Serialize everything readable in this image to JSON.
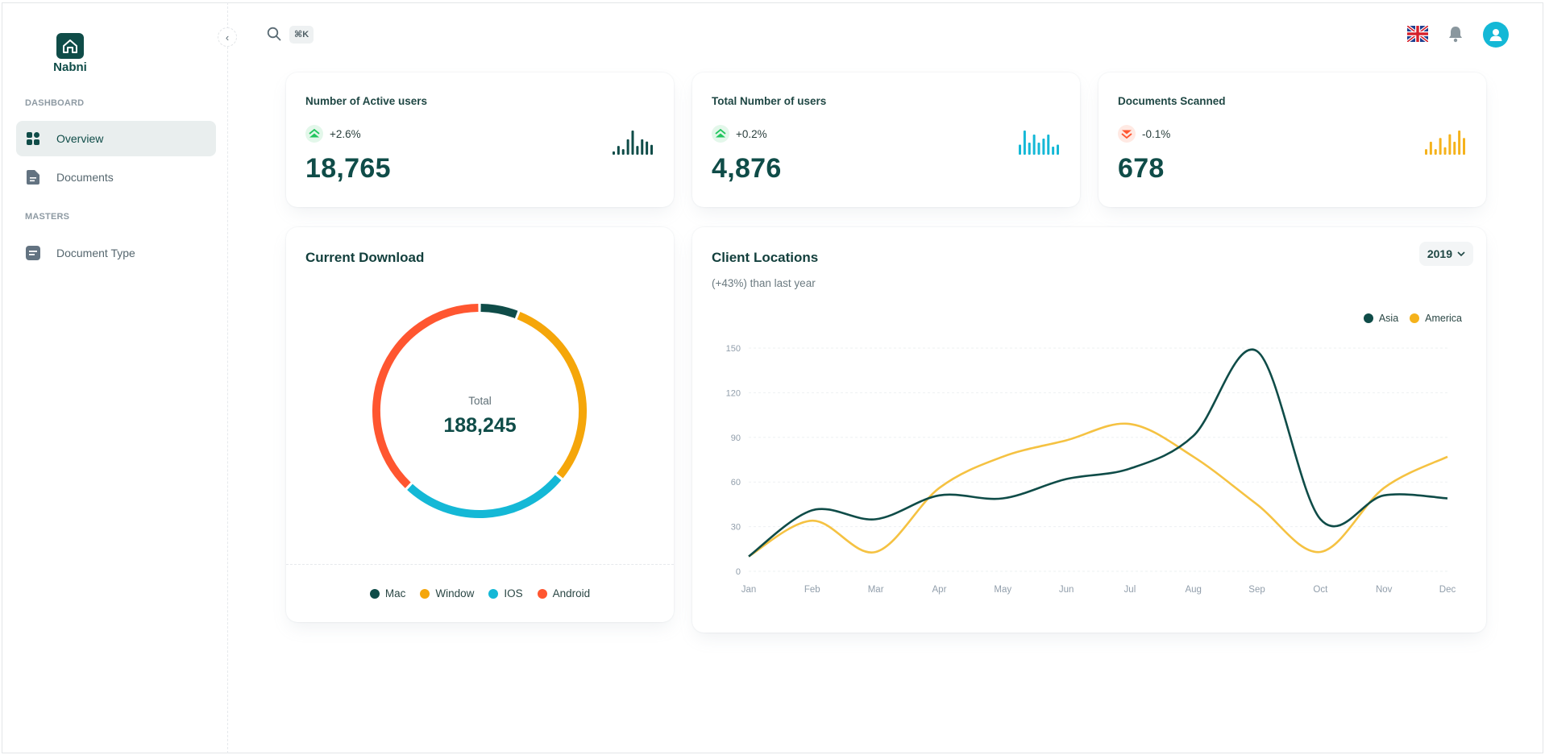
{
  "app": {
    "logo_text": "Nabni"
  },
  "sidebar": {
    "sections": [
      {
        "label": "DASHBOARD"
      },
      {
        "label": "MASTERS"
      }
    ],
    "items": [
      {
        "label": "Overview",
        "icon": "grid-icon",
        "active": true
      },
      {
        "label": "Documents",
        "icon": "document-icon",
        "active": false
      },
      {
        "label": "Document Type",
        "icon": "document-type-icon",
        "active": false
      }
    ]
  },
  "topbar": {
    "search_shortcut": "⌘K",
    "language_icon": "uk-flag-icon",
    "notification_icon": "bell-icon",
    "avatar_icon": "user-icon"
  },
  "stats": [
    {
      "title": "Number of Active users",
      "trend": "+2.6%",
      "direction": "up",
      "value": "18,765",
      "color": "#0f4c48",
      "bars": [
        3,
        8,
        5,
        14,
        22,
        8,
        14,
        12,
        9
      ]
    },
    {
      "title": "Total Number of users",
      "trend": "+0.2%",
      "direction": "up",
      "value": "4,876",
      "color": "#14b8d6",
      "bars": [
        10,
        24,
        12,
        20,
        12,
        16,
        20,
        8,
        10
      ]
    },
    {
      "title": "Documents Scanned",
      "trend": "-0.1%",
      "direction": "down",
      "value": "678",
      "color": "#f5b21b",
      "bars": [
        6,
        14,
        6,
        18,
        8,
        22,
        14,
        26,
        18
      ]
    }
  ],
  "colors": {
    "up": "#22c55e",
    "down": "#ff5630",
    "primary": "#0f4c48"
  },
  "donut": {
    "title": "Current Download",
    "center_label": "Total",
    "center_value": "188,245"
  },
  "line": {
    "title": "Client Locations",
    "subtitle": "(+43%) than last year",
    "year": "2019"
  },
  "chart_data": [
    {
      "type": "pie",
      "title": "Current Download",
      "categories": [
        "Mac",
        "Window",
        "IOS",
        "Android"
      ],
      "values": [
        6,
        30,
        26,
        38
      ],
      "colors": [
        "#0f4c48",
        "#f5a60a",
        "#14b8d6",
        "#ff5630"
      ],
      "legend": "bottom"
    },
    {
      "type": "line",
      "title": "Client Locations",
      "categories": [
        "Jan",
        "Feb",
        "Mar",
        "Apr",
        "May",
        "Jun",
        "Jul",
        "Aug",
        "Sep",
        "Oct",
        "Nov",
        "Dec"
      ],
      "series": [
        {
          "name": "Asia",
          "color": "#0f4c48",
          "values": [
            10,
            41,
            35,
            51,
            49,
            62,
            69,
            91,
            148,
            35,
            51,
            49
          ]
        },
        {
          "name": "America",
          "color": "#f5c242",
          "values": [
            10,
            34,
            13,
            56,
            77,
            88,
            99,
            77,
            45,
            13,
            56,
            77
          ]
        }
      ],
      "yticks": [
        0,
        30,
        60,
        90,
        120,
        150
      ],
      "ylim": [
        0,
        150
      ],
      "grid": true,
      "legend": "top-right"
    }
  ]
}
